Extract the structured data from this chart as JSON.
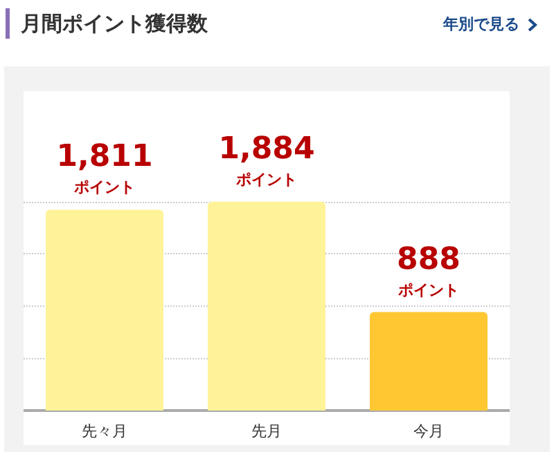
{
  "chart_data": {
    "type": "bar",
    "title": "月間ポイント獲得数",
    "annotations": [
      "年別で見る"
    ],
    "categories": [
      "先々月",
      "先月",
      "今月"
    ],
    "values": [
      1811,
      1884,
      888
    ],
    "colors": [
      "#fff39a",
      "#fff39a",
      "#ffc832"
    ],
    "value_labels": [
      "1,811\nポイント",
      "1,884\nポイント",
      "888\nポイント"
    ],
    "ylim": [
      0,
      2880
    ],
    "yticks": [
      {
        "value": 471,
        "label": null
      },
      {
        "value": 942,
        "label": null
      },
      {
        "value": 1413,
        "label": null
      },
      {
        "value": 1884,
        "label": null
      }
    ],
    "grid": "y",
    "tick_labels": "x"
  }
}
